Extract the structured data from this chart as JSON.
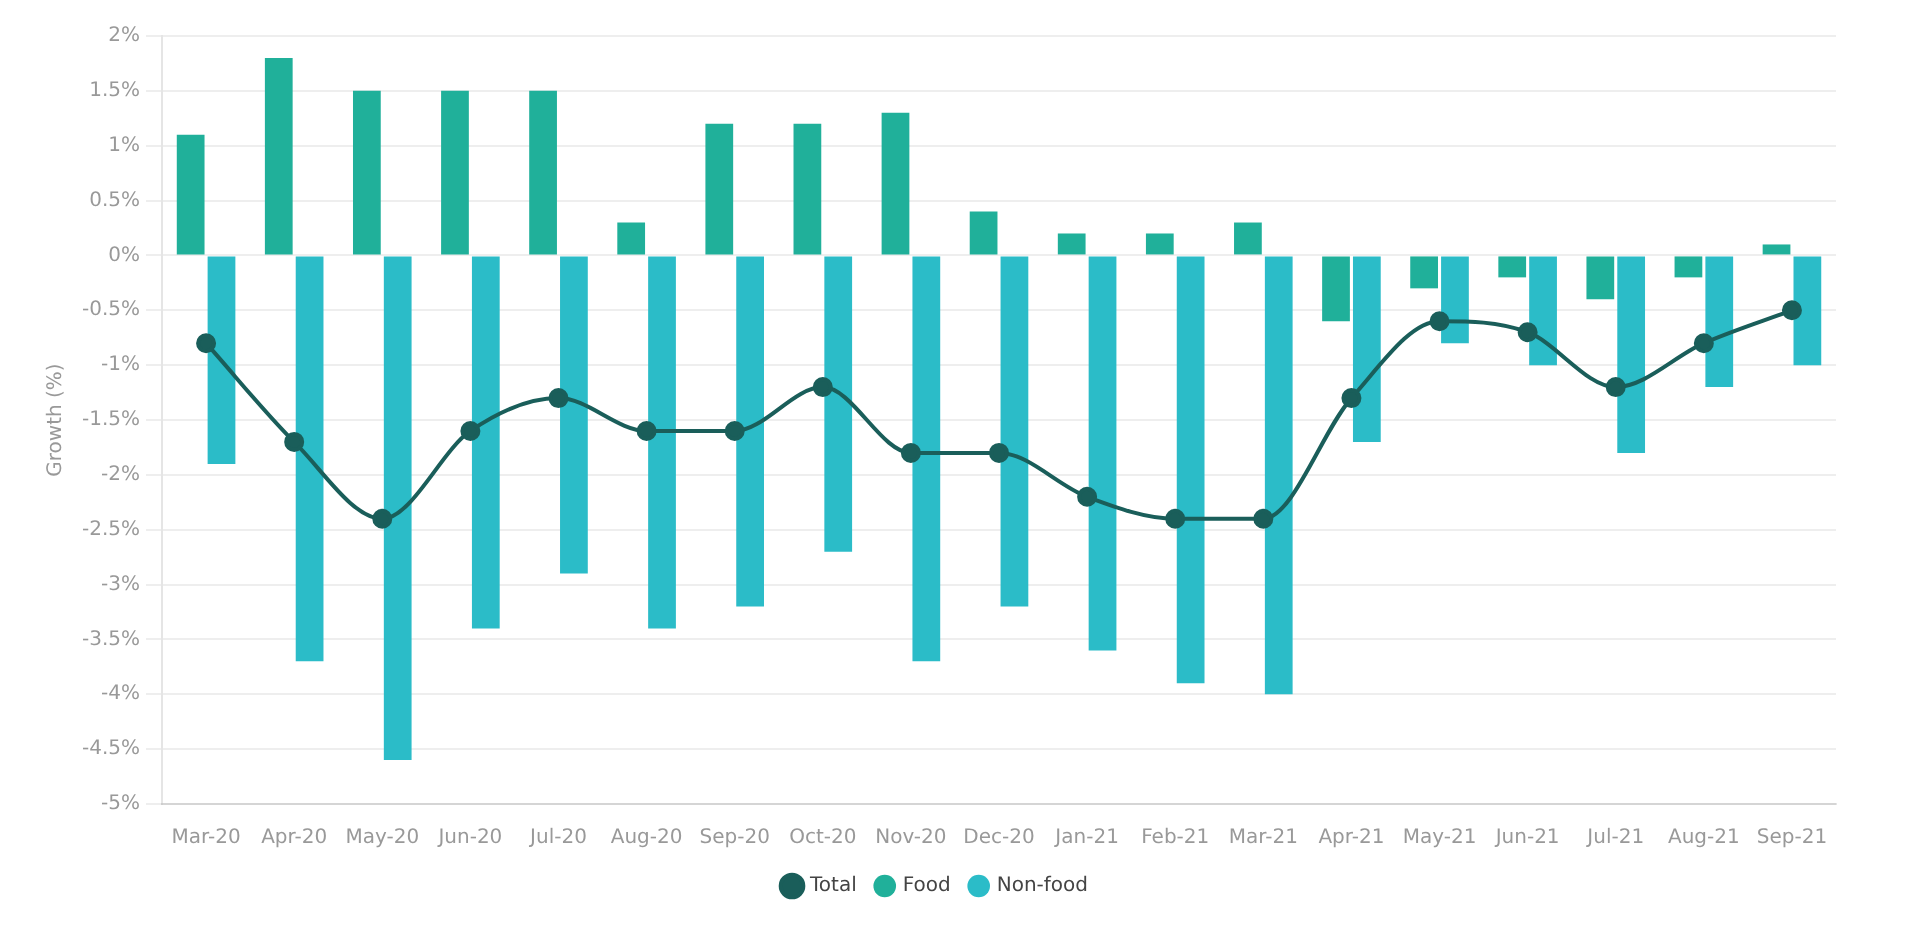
{
  "chart_data": {
    "type": "bar",
    "ylabel": "Growth (%)",
    "categories": [
      "Mar-20",
      "Apr-20",
      "May-20",
      "Jun-20",
      "Jul-20",
      "Aug-20",
      "Sep-20",
      "Oct-20",
      "Nov-20",
      "Dec-20",
      "Jan-21",
      "Feb-21",
      "Mar-21",
      "Apr-21",
      "May-21",
      "Jun-21",
      "Jul-21",
      "Aug-21",
      "Sep-21"
    ],
    "series": [
      {
        "name": "Total",
        "type": "line",
        "color": "#1a5e5a",
        "marker": "circle",
        "values": [
          -0.8,
          -1.7,
          -2.4,
          -1.6,
          -1.3,
          -1.6,
          -1.6,
          -1.2,
          -1.8,
          -1.8,
          -2.2,
          -2.4,
          -2.4,
          -1.3,
          -0.6,
          -0.7,
          -1.2,
          -0.8,
          -0.5
        ]
      },
      {
        "name": "Food",
        "color": "#20b09a",
        "values": [
          1.1,
          1.8,
          1.5,
          1.5,
          1.5,
          0.3,
          1.2,
          1.2,
          1.3,
          0.4,
          0.2,
          0.2,
          0.3,
          -0.6,
          -0.3,
          -0.2,
          -0.4,
          -0.2,
          0.1
        ]
      },
      {
        "name": "Non-food",
        "color": "#2bbcc8",
        "values": [
          -1.9,
          -3.7,
          -4.6,
          -3.4,
          -2.9,
          -3.4,
          -3.2,
          -2.7,
          -3.7,
          -3.2,
          -3.6,
          -3.9,
          -4.0,
          -1.7,
          -0.8,
          -1.0,
          -1.8,
          -1.2,
          -1.0
        ]
      }
    ],
    "ylim": [
      -5,
      2
    ],
    "yticks": [
      {
        "value": -5,
        "label": "-5%"
      },
      {
        "value": -4.5,
        "label": "-4.5%"
      },
      {
        "value": -4,
        "label": "-4%"
      },
      {
        "value": -3.5,
        "label": "-3.5%"
      },
      {
        "value": -3,
        "label": "-3%"
      },
      {
        "value": -2.5,
        "label": "-2.5%"
      },
      {
        "value": -2,
        "label": "-2%"
      },
      {
        "value": -1.5,
        "label": "-1.5%"
      },
      {
        "value": -1,
        "label": "-1%"
      },
      {
        "value": -0.5,
        "label": "-0.5%"
      },
      {
        "value": 0,
        "label": "0%"
      },
      {
        "value": 0.5,
        "label": "0.5%"
      },
      {
        "value": 1,
        "label": "1%"
      },
      {
        "value": 1.5,
        "label": "1.5%"
      },
      {
        "value": 2,
        "label": "2%"
      }
    ],
    "grid": "y",
    "legend": "bottom"
  }
}
